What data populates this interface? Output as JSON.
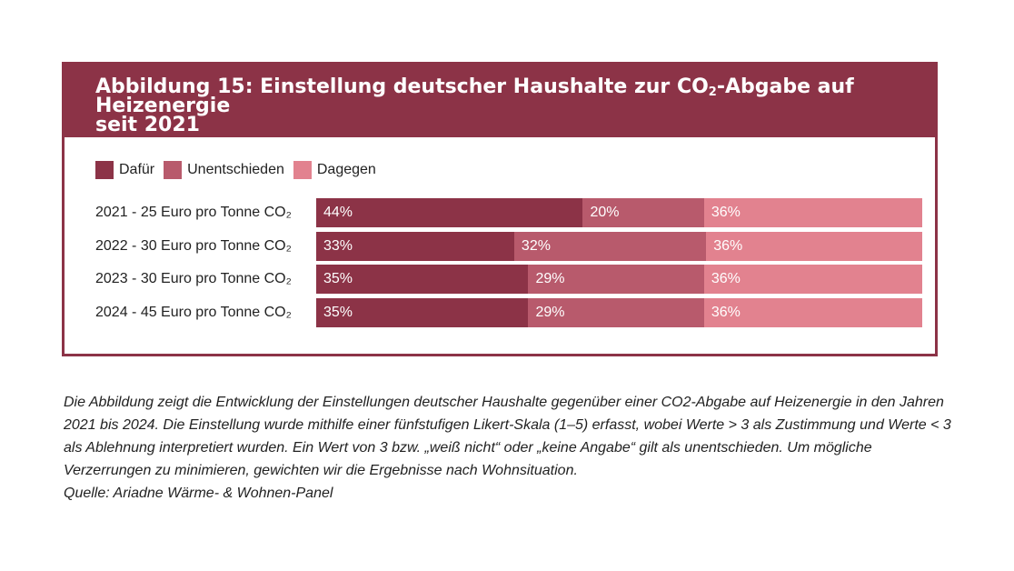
{
  "figure": {
    "title_part1": "Abbildung 15: Einstellung deutscher Haushalte zur CO",
    "title_sub": "2",
    "title_part2": "-Abgabe auf Heizenergie",
    "title_line2": "seit 2021"
  },
  "colors": {
    "header": "#8c3347",
    "dafuer": "#8c3347",
    "unentschieden": "#b85a6c",
    "dagegen": "#e2828f"
  },
  "chart_data": {
    "type": "bar",
    "orientation": "horizontal",
    "stacked": true,
    "normalized_percent": true,
    "legend_position": "top-left",
    "grid": false,
    "categories": [
      "2021 - 25 Euro pro Tonne CO₂",
      "2022 - 30 Euro pro Tonne CO₂",
      "2023 - 30 Euro pro Tonne CO₂",
      "2024 - 45 Euro pro Tonne CO₂"
    ],
    "series": [
      {
        "name": "Dafür",
        "color": "#8c3347",
        "values": [
          44,
          33,
          35,
          35
        ],
        "labels": [
          "44%",
          "33%",
          "35%",
          "35%"
        ]
      },
      {
        "name": "Unentschieden",
        "color": "#b85a6c",
        "values": [
          20,
          32,
          29,
          29
        ],
        "labels": [
          "20%",
          "32%",
          "29%",
          "29%"
        ]
      },
      {
        "name": "Dagegen",
        "color": "#e2828f",
        "values": [
          36,
          36,
          36,
          36
        ],
        "labels": [
          "36%",
          "36%",
          "36%",
          "36%"
        ]
      }
    ]
  },
  "caption": {
    "text": "Die Abbildung zeigt die Entwicklung der Einstellungen deutscher Haushalte gegenüber einer CO2-Abgabe auf Heizenergie in den Jahren 2021 bis 2024. Die Einstellung wurde mithilfe einer fünfstufigen Likert-Skala (1–5) erfasst, wobei Werte > 3 als Zustimmung und Werte < 3 als Ablehnung interpretiert wurden. Ein Wert von 3 bzw. „weiß nicht“ oder „keine Angabe“ gilt als unentschieden. Um mögliche Verzerrungen zu minimieren, gewichten wir die Ergebnisse nach Wohnsituation.",
    "source": "Quelle: Ariadne Wärme- & Wohnen-Panel"
  }
}
